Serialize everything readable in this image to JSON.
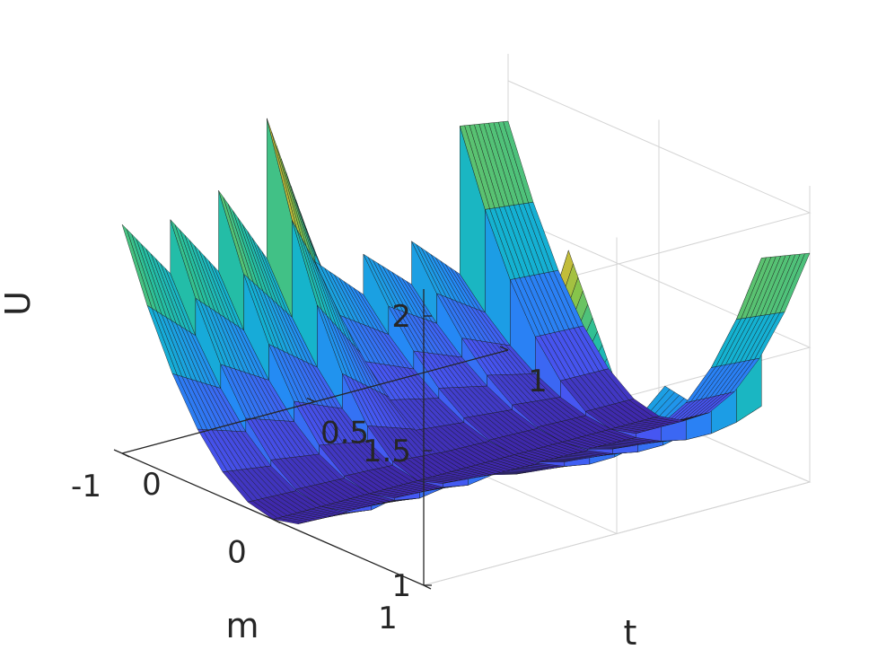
{
  "chart_data": {
    "type": "surface",
    "colormap": "parula",
    "grid": true,
    "xlabel": "t",
    "ylabel": "m",
    "zlabel": "U",
    "xlim": [
      0,
      1
    ],
    "ylim": [
      -1,
      1
    ],
    "zlim": [
      1,
      2.1
    ],
    "xticks": [
      "0",
      "0.5",
      "1"
    ],
    "yticks": [
      "-1",
      "0",
      "1"
    ],
    "zticks": [
      "1",
      "1.5",
      "2"
    ],
    "surface_model": "U(t, m) = 1 + a(t) * m^2, piecewise in t with jumps at segment boundaries",
    "t_segments": [
      {
        "t_start": 0.0,
        "t_end": 0.125,
        "a_start": 0.85,
        "a_end": 0.62
      },
      {
        "t_start": 0.125,
        "t_end": 0.25,
        "a_start": 0.82,
        "a_end": 0.58
      },
      {
        "t_start": 0.25,
        "t_end": 0.375,
        "a_start": 0.88,
        "a_end": 0.58
      },
      {
        "t_start": 0.375,
        "t_end": 0.5,
        "a_start": 1.1,
        "a_end": 0.55
      },
      {
        "t_start": 0.5,
        "t_end": 0.625,
        "a_start": 0.52,
        "a_end": 0.35
      },
      {
        "t_start": 0.625,
        "t_end": 0.75,
        "a_start": 0.5,
        "a_end": 0.34
      },
      {
        "t_start": 0.75,
        "t_end": 0.875,
        "a_start": 0.5,
        "a_end": 0.33
      },
      {
        "t_start": 0.875,
        "t_end": 1.0,
        "a_start": 0.88,
        "a_end": 0.85
      }
    ]
  }
}
